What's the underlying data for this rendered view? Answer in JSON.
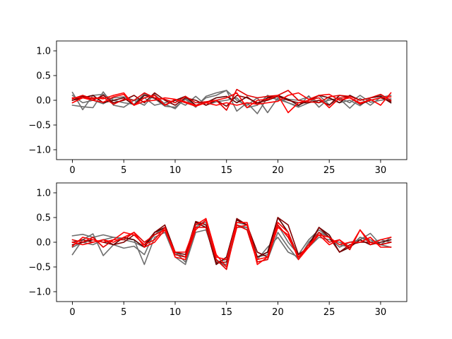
{
  "chart_data": [
    {
      "type": "line",
      "title": "",
      "xlabel": "",
      "ylabel": "",
      "xlim": [
        -1.55,
        32.55
      ],
      "ylim": [
        -1.2,
        1.2
      ],
      "xticks": [
        0,
        5,
        10,
        15,
        20,
        25,
        30
      ],
      "yticks": [
        -1.0,
        -0.5,
        0.0,
        0.5,
        1.0
      ],
      "xtick_labels": [
        "0",
        "5",
        "10",
        "15",
        "20",
        "25",
        "30"
      ],
      "ytick_labels": [
        "−1.0",
        "−0.5",
        "0.0",
        "0.5",
        "1.0"
      ],
      "grid": false,
      "x": [
        0,
        1,
        2,
        3,
        4,
        5,
        6,
        7,
        8,
        9,
        10,
        11,
        12,
        13,
        14,
        15,
        16,
        17,
        18,
        19,
        20,
        21,
        22,
        23,
        24,
        25,
        26,
        27,
        28,
        29,
        30,
        31
      ],
      "series": [
        {
          "color": "#6e6e6e",
          "values": [
            0.16,
            -0.19,
            0.1,
            0.12,
            0.0,
            -0.05,
            -0.08,
            0.13,
            0.03,
            -0.12,
            -0.14,
            0.02,
            -0.14,
            0.08,
            0.15,
            0.2,
            -0.22,
            -0.05,
            -0.27,
            0.06,
            0.02,
            -0.05,
            -0.12,
            0.09,
            -0.14,
            0.04,
            -0.05,
            0.0,
            -0.11,
            0.05,
            0.1,
            -0.05
          ]
        },
        {
          "color": "#6e6e6e",
          "values": [
            -0.1,
            -0.13,
            -0.15,
            0.17,
            -0.1,
            -0.14,
            0.0,
            -0.1,
            0.12,
            -0.08,
            -0.17,
            0.05,
            -0.12,
            0.05,
            0.1,
            0.2,
            0.0,
            -0.1,
            0.05,
            -0.25,
            0.05,
            -0.05,
            -0.14,
            -0.05,
            0.1,
            -0.09,
            0.03,
            -0.16,
            0.04,
            -0.1,
            0.06,
            0.1
          ]
        },
        {
          "color": "#6e6e6e",
          "values": [
            0.1,
            -0.05,
            0.0,
            -0.07,
            0.05,
            0.07,
            0.0,
            0.05,
            -0.1,
            -0.05,
            0.0,
            -0.1,
            0.08,
            -0.1,
            -0.03,
            0.0,
            0.05,
            -0.15,
            -0.1,
            0.1,
            0.0,
            0.02,
            0.0,
            0.07,
            -0.05,
            0.0,
            0.05,
            -0.05,
            0.1,
            -0.04,
            0.0,
            0.03
          ]
        },
        {
          "color": "#5a0000",
          "values": [
            0.0,
            0.05,
            0.1,
            -0.05,
            0.0,
            0.05,
            -0.1,
            0.1,
            0.05,
            -0.1,
            0.0,
            0.08,
            -0.1,
            -0.05,
            0.05,
            0.08,
            -0.05,
            0.07,
            -0.08,
            0.05,
            0.1,
            0.02,
            -0.1,
            0.0,
            0.1,
            0.05,
            -0.05,
            0.1,
            0.0,
            0.05,
            0.08,
            -0.05
          ]
        },
        {
          "color": "#800000",
          "values": [
            0.0,
            0.08,
            0.0,
            0.1,
            -0.05,
            0.0,
            0.1,
            -0.05,
            0.15,
            0.0,
            -0.1,
            0.05,
            0.0,
            -0.1,
            0.0,
            -0.12,
            0.1,
            0.05,
            -0.05,
            0.0,
            0.08,
            0.0,
            -0.05,
            -0.05,
            0.0,
            -0.1,
            0.1,
            0.05,
            -0.08,
            0.0,
            0.05,
            -0.02
          ]
        },
        {
          "color": "#e00000",
          "values": [
            0.03,
            0.1,
            0.03,
            0.06,
            -0.08,
            0.02,
            0.0,
            0.15,
            0.05,
            0.02,
            -0.05,
            0.08,
            -0.05,
            -0.03,
            0.0,
            -0.2,
            0.22,
            0.1,
            0.05,
            0.08,
            0.1,
            0.2,
            0.0,
            -0.03,
            -0.05,
            0.07,
            0.1,
            0.08,
            0.0,
            0.05,
            0.12,
            0.0
          ]
        },
        {
          "color": "#ff0000",
          "values": [
            -0.05,
            0.05,
            0.0,
            -0.04,
            0.07,
            0.12,
            -0.1,
            0.05,
            0.1,
            -0.1,
            0.02,
            -0.05,
            -0.12,
            -0.05,
            0.0,
            0.05,
            0.15,
            -0.15,
            0.0,
            0.02,
            0.1,
            -0.25,
            -0.05,
            0.0,
            0.05,
            -0.15,
            0.05,
            0.05,
            -0.07,
            0.02,
            -0.1,
            0.15
          ]
        },
        {
          "color": "#ff0000",
          "values": [
            0.05,
            0.05,
            0.05,
            0.03,
            0.1,
            0.15,
            -0.1,
            -0.02,
            0.0,
            0.05,
            0.02,
            -0.03,
            -0.1,
            -0.05,
            -0.1,
            -0.05,
            -0.1,
            -0.05,
            -0.08,
            -0.05,
            -0.02,
            0.1,
            0.15,
            0.02,
            0.1,
            0.12,
            0.0,
            0.05,
            -0.05,
            0.0,
            0.05,
            0.07
          ]
        }
      ]
    },
    {
      "type": "line",
      "title": "",
      "xlabel": "",
      "ylabel": "",
      "xlim": [
        -1.55,
        32.55
      ],
      "ylim": [
        -1.2,
        1.2
      ],
      "xticks": [
        0,
        5,
        10,
        15,
        20,
        25,
        30
      ],
      "yticks": [
        -1.0,
        -0.5,
        0.0,
        0.5,
        1.0
      ],
      "xtick_labels": [
        "0",
        "5",
        "10",
        "15",
        "20",
        "25",
        "30"
      ],
      "ytick_labels": [
        "−1.0",
        "−0.5",
        "0.0",
        "0.5",
        "1.0"
      ],
      "grid": false,
      "x": [
        0,
        1,
        2,
        3,
        4,
        5,
        6,
        7,
        8,
        9,
        10,
        11,
        12,
        13,
        14,
        15,
        16,
        17,
        18,
        19,
        20,
        21,
        22,
        23,
        24,
        25,
        26,
        27,
        28,
        29,
        30,
        31
      ],
      "series": [
        {
          "color": "#6e6e6e",
          "values": [
            0.13,
            0.16,
            0.1,
            0.15,
            0.1,
            0.08,
            0.05,
            -0.45,
            0.1,
            0.2,
            -0.3,
            -0.45,
            0.2,
            0.25,
            -0.35,
            -0.5,
            0.3,
            0.3,
            -0.4,
            -0.35,
            0.2,
            -0.1,
            -0.35,
            0.0,
            0.2,
            0.1,
            -0.1,
            0.0,
            0.05,
            0.18,
            -0.05,
            0.1
          ]
        },
        {
          "color": "#6e6e6e",
          "values": [
            -0.25,
            0.05,
            0.17,
            -0.27,
            -0.05,
            -0.12,
            -0.08,
            -0.25,
            0.2,
            0.25,
            -0.2,
            -0.4,
            0.3,
            0.45,
            -0.4,
            -0.35,
            0.35,
            0.3,
            -0.3,
            -0.25,
            0.35,
            0.0,
            -0.25,
            0.05,
            0.25,
            0.1,
            -0.05,
            -0.1,
            0.1,
            0.0,
            0.05,
            0.0
          ]
        },
        {
          "color": "#6e6e6e",
          "values": [
            -0.1,
            0.0,
            -0.05,
            0.05,
            0.1,
            0.05,
            0.0,
            -0.1,
            0.15,
            0.3,
            -0.2,
            -0.3,
            0.35,
            0.4,
            -0.4,
            -0.45,
            0.4,
            0.35,
            -0.35,
            -0.1,
            0.1,
            -0.2,
            -0.3,
            -0.1,
            0.1,
            0.05,
            0.0,
            -0.1,
            0.1,
            0.05,
            -0.05,
            -0.1
          ]
        },
        {
          "color": "#5a0000",
          "values": [
            -0.05,
            0.0,
            0.05,
            0.0,
            -0.05,
            0.1,
            0.05,
            -0.1,
            0.2,
            0.3,
            -0.25,
            -0.3,
            0.4,
            0.3,
            -0.45,
            -0.3,
            0.45,
            0.35,
            -0.3,
            -0.2,
            0.5,
            0.2,
            -0.3,
            -0.05,
            0.3,
            0.15,
            -0.2,
            -0.1,
            0.05,
            -0.05,
            0.0,
            0.05
          ]
        },
        {
          "color": "#800000",
          "values": [
            0.0,
            0.05,
            0.0,
            0.05,
            -0.05,
            0.0,
            0.15,
            -0.05,
            0.2,
            0.35,
            -0.2,
            -0.25,
            0.42,
            0.35,
            -0.42,
            -0.4,
            0.48,
            0.35,
            -0.2,
            -0.3,
            0.5,
            0.35,
            -0.25,
            -0.1,
            0.3,
            0.1,
            -0.2,
            -0.05,
            0.0,
            0.0,
            -0.05,
            0.0
          ]
        },
        {
          "color": "#e00000",
          "values": [
            0.05,
            0.0,
            0.1,
            -0.1,
            0.05,
            0.05,
            0.2,
            0.0,
            0.15,
            0.25,
            -0.25,
            -0.3,
            0.3,
            0.3,
            -0.35,
            -0.55,
            0.35,
            0.25,
            -0.4,
            -0.35,
            0.35,
            0.1,
            -0.3,
            -0.1,
            0.2,
            0.0,
            0.05,
            -0.15,
            0.25,
            0.0,
            -0.05,
            0.0
          ]
        },
        {
          "color": "#ff0000",
          "values": [
            -0.08,
            0.1,
            0.05,
            0.0,
            0.05,
            0.2,
            0.15,
            -0.05,
            0.05,
            0.3,
            -0.3,
            -0.35,
            0.25,
            0.45,
            -0.3,
            -0.35,
            0.4,
            0.4,
            -0.45,
            -0.3,
            0.4,
            0.2,
            -0.35,
            -0.1,
            0.15,
            -0.05,
            0.05,
            -0.1,
            0.25,
            -0.05,
            0.05,
            0.1
          ]
        },
        {
          "color": "#ff0000",
          "values": [
            0.0,
            -0.05,
            0.0,
            0.05,
            0.0,
            0.1,
            0.2,
            -0.1,
            0.0,
            0.25,
            -0.2,
            -0.2,
            0.35,
            0.48,
            -0.25,
            -0.5,
            0.3,
            0.35,
            -0.35,
            -0.3,
            0.3,
            0.15,
            -0.3,
            -0.05,
            0.15,
            0.1,
            -0.05,
            0.0,
            0.0,
            0.1,
            -0.1,
            -0.1
          ]
        }
      ]
    }
  ]
}
